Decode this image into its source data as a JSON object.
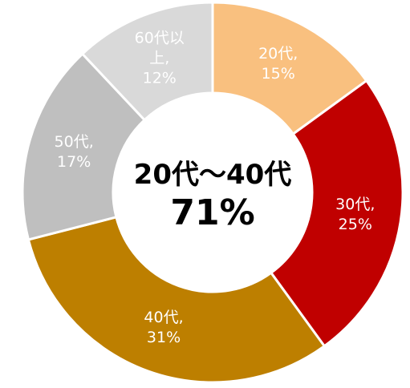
{
  "chart_data": {
    "type": "donut",
    "categories": [
      "20代,",
      "30代,",
      "40代,",
      "50代,",
      "60代以上,"
    ],
    "values": [
      15,
      25,
      31,
      17,
      12
    ],
    "value_labels": [
      "15%",
      "25%",
      "31%",
      "17%",
      "12%"
    ],
    "colors": [
      "#F9C07F",
      "#C00000",
      "#BD7F00",
      "#BFBFBF",
      "#D9D9D9"
    ],
    "annotations": [
      "20代～40代",
      "71%"
    ]
  }
}
